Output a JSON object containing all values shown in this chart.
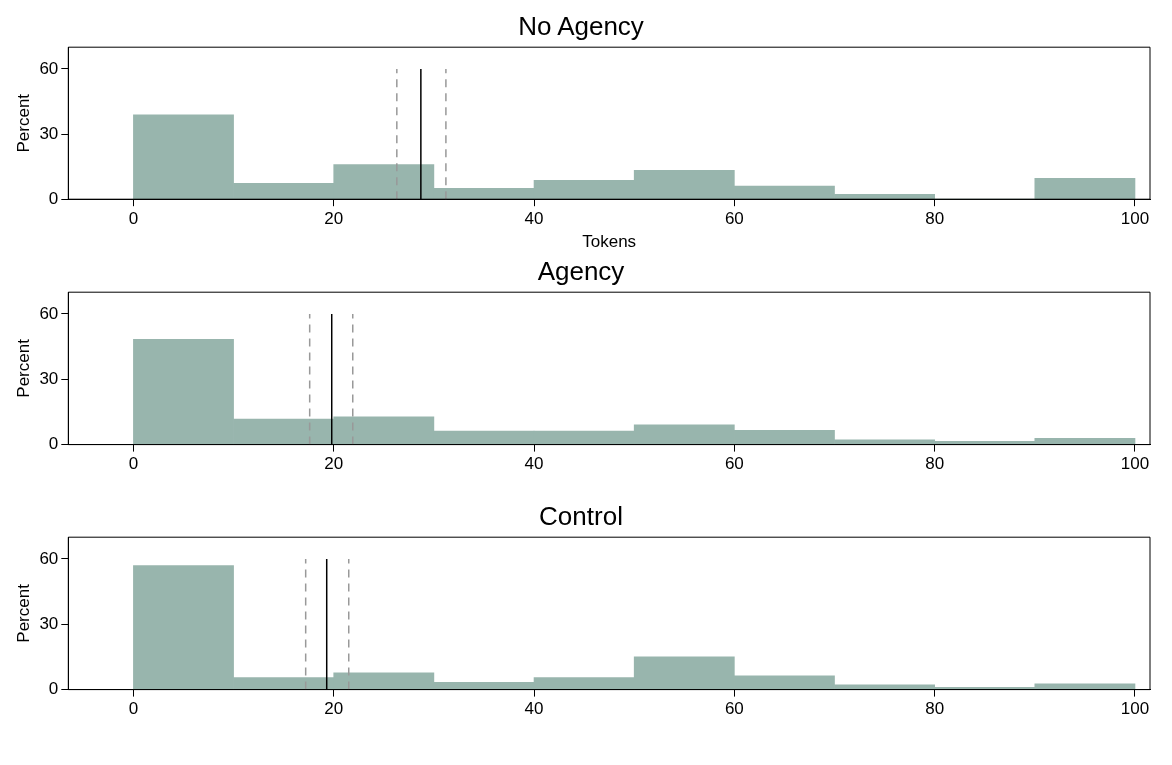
{
  "chart_data": [
    {
      "type": "histogram",
      "title": "No Agency",
      "xlabel": "Tokens",
      "ylabel": "Percent",
      "bins": [
        0,
        10,
        20,
        30,
        40,
        50,
        60,
        70,
        80,
        90,
        100
      ],
      "values": [
        38.9,
        7.3,
        16,
        5,
        8.7,
        13.3,
        6,
        2.3,
        0,
        9.6
      ],
      "color": "#98b5ad",
      "xlim": [
        -6.5,
        101.5
      ],
      "xticks": [
        0,
        20,
        40,
        60,
        80,
        100
      ],
      "ylim": [
        0,
        70
      ],
      "yticks": [
        0,
        30,
        60
      ],
      "grid": false,
      "legend": false,
      "ref_lines": [
        {
          "axis": "x",
          "value": 26.3,
          "color": "#999999",
          "line_style": "dashed"
        },
        {
          "axis": "x",
          "value": 28.7,
          "color": "#000000",
          "line_style": "solid"
        },
        {
          "axis": "x",
          "value": 31.2,
          "color": "#999999",
          "line_style": "dashed"
        }
      ]
    },
    {
      "type": "histogram",
      "title": "Agency",
      "ylabel": "Percent",
      "bins": [
        0,
        10,
        20,
        30,
        40,
        50,
        60,
        70,
        80,
        90,
        100
      ],
      "values": [
        48.3,
        11.7,
        12.8,
        6.2,
        6.2,
        9.1,
        6.6,
        2.2,
        1.5,
        2.9
      ],
      "color": "#98b5ad",
      "xlim": [
        -6.5,
        101.5
      ],
      "xticks": [
        0,
        20,
        40,
        60,
        80,
        100
      ],
      "ylim": [
        0,
        70
      ],
      "yticks": [
        0,
        30,
        60
      ],
      "grid": false,
      "legend": false,
      "ref_lines": [
        {
          "axis": "x",
          "value": 17.6,
          "color": "#999999",
          "line_style": "dashed"
        },
        {
          "axis": "x",
          "value": 19.8,
          "color": "#000000",
          "line_style": "solid"
        },
        {
          "axis": "x",
          "value": 21.9,
          "color": "#999999",
          "line_style": "dashed"
        }
      ]
    },
    {
      "type": "histogram",
      "title": "Control",
      "ylabel": "Percent",
      "bins": [
        0,
        10,
        20,
        30,
        40,
        50,
        60,
        70,
        80,
        90,
        100
      ],
      "values": [
        57,
        5.5,
        7.7,
        3.3,
        5.5,
        15.1,
        6.3,
        2.2,
        1.1,
        2.6
      ],
      "color": "#98b5ad",
      "xlim": [
        -6.5,
        101.5
      ],
      "xticks": [
        0,
        20,
        40,
        60,
        80,
        100
      ],
      "ylim": [
        0,
        70
      ],
      "yticks": [
        0,
        30,
        60
      ],
      "grid": false,
      "legend": false,
      "ref_lines": [
        {
          "axis": "x",
          "value": 17.2,
          "color": "#999999",
          "line_style": "dashed"
        },
        {
          "axis": "x",
          "value": 19.3,
          "color": "#000000",
          "line_style": "solid"
        },
        {
          "axis": "x",
          "value": 21.5,
          "color": "#999999",
          "line_style": "dashed"
        }
      ]
    }
  ]
}
